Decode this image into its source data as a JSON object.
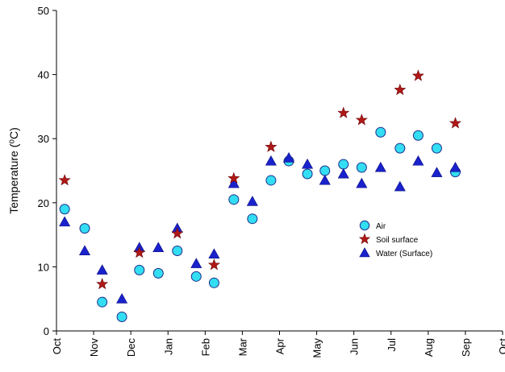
{
  "chart_data": {
    "type": "scatter",
    "title": "",
    "xlabel": "",
    "ylabel": "Temperature (⁰C)",
    "ylim": [
      0,
      50
    ],
    "yticks": [
      0,
      10,
      20,
      30,
      40,
      50
    ],
    "xlim": [
      0,
      12
    ],
    "xticks": [
      {
        "value": 0,
        "label": "Oct"
      },
      {
        "value": 1,
        "label": "Nov"
      },
      {
        "value": 2,
        "label": "Dec"
      },
      {
        "value": 3,
        "label": "Jan"
      },
      {
        "value": 4,
        "label": "Feb"
      },
      {
        "value": 5,
        "label": "Mar"
      },
      {
        "value": 6,
        "label": "Apr"
      },
      {
        "value": 7,
        "label": "May"
      },
      {
        "value": 8,
        "label": "Jun"
      },
      {
        "value": 9,
        "label": "Jul"
      },
      {
        "value": 10,
        "label": "Aug"
      },
      {
        "value": 11,
        "label": "Sep"
      },
      {
        "value": 12,
        "label": "Oct"
      }
    ],
    "grid": false,
    "legend_position": "center-right",
    "series": [
      {
        "name": "Air",
        "marker": "circle",
        "color": "#33ddf2",
        "edge": "#1c2f8c",
        "points": [
          [
            0.22,
            19.0
          ],
          [
            0.76,
            16.0
          ],
          [
            1.23,
            4.5
          ],
          [
            1.76,
            2.2
          ],
          [
            2.23,
            9.5
          ],
          [
            2.74,
            9.0
          ],
          [
            3.25,
            12.5
          ],
          [
            3.76,
            8.5
          ],
          [
            4.24,
            7.5
          ],
          [
            4.77,
            20.5
          ],
          [
            5.27,
            17.5
          ],
          [
            5.77,
            23.5
          ],
          [
            6.25,
            26.5
          ],
          [
            6.75,
            24.5
          ],
          [
            7.22,
            25.0
          ],
          [
            7.72,
            26.0
          ],
          [
            8.21,
            25.5
          ],
          [
            8.72,
            31.0
          ],
          [
            9.24,
            28.5
          ],
          [
            9.73,
            30.5
          ],
          [
            10.23,
            28.5
          ],
          [
            10.73,
            24.8
          ]
        ]
      },
      {
        "name": "Soil surface",
        "marker": "star",
        "color": "#b01818",
        "edge": "#6a0808",
        "points": [
          [
            0.22,
            23.5
          ],
          [
            1.23,
            7.3
          ],
          [
            2.23,
            12.2
          ],
          [
            3.25,
            15.2
          ],
          [
            4.24,
            10.3
          ],
          [
            4.77,
            23.8
          ],
          [
            5.77,
            28.7
          ],
          [
            7.72,
            34.0
          ],
          [
            8.21,
            32.9
          ],
          [
            9.24,
            37.6
          ],
          [
            9.73,
            39.8
          ],
          [
            10.73,
            32.4
          ]
        ]
      },
      {
        "name": "Water (Surface)",
        "marker": "triangle",
        "color": "#1a22cc",
        "edge": "#0a0f80",
        "points": [
          [
            0.22,
            17.0
          ],
          [
            0.76,
            12.5
          ],
          [
            1.23,
            9.5
          ],
          [
            1.76,
            5.0
          ],
          [
            2.23,
            13.0
          ],
          [
            2.74,
            13.0
          ],
          [
            3.25,
            16.0
          ],
          [
            3.76,
            10.5
          ],
          [
            4.24,
            12.0
          ],
          [
            4.77,
            23.0
          ],
          [
            5.27,
            20.2
          ],
          [
            5.77,
            26.5
          ],
          [
            6.25,
            27.0
          ],
          [
            6.75,
            26.0
          ],
          [
            7.22,
            23.5
          ],
          [
            7.72,
            24.5
          ],
          [
            8.21,
            23.0
          ],
          [
            8.72,
            25.5
          ],
          [
            9.24,
            22.5
          ],
          [
            9.73,
            26.5
          ],
          [
            10.23,
            24.7
          ],
          [
            10.73,
            25.5
          ]
        ]
      }
    ]
  }
}
